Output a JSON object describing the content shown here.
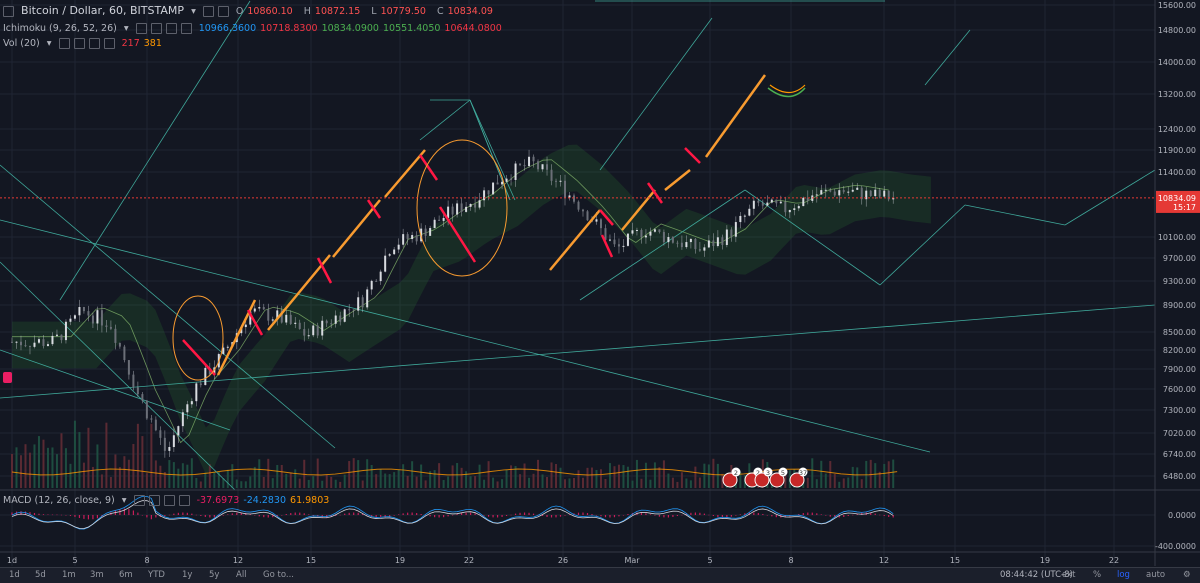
{
  "header": {
    "symbol": "Bitcoin / Dollar, 60, BITSTAMP",
    "ohlc": [
      {
        "label": "O",
        "value": "10860.10"
      },
      {
        "label": "H",
        "value": "10872.15"
      },
      {
        "label": "L",
        "value": "10779.50"
      },
      {
        "label": "C",
        "value": "10834.09"
      }
    ],
    "ichimoku": {
      "label": "Ichimoku (9, 26, 52, 26)",
      "values": [
        {
          "value": "10966.3600",
          "color": "#2196f3"
        },
        {
          "value": "10718.8300",
          "color": "#f23645"
        },
        {
          "value": "10834.0900",
          "color": "#4caf50"
        },
        {
          "value": "10551.4050",
          "color": "#4caf50"
        },
        {
          "value": "10644.0800",
          "color": "#f23645"
        }
      ]
    },
    "volume": {
      "label": "Vol (20)",
      "values": [
        {
          "value": "217",
          "color": "#f23645"
        },
        {
          "value": "381",
          "color": "#ff9800"
        }
      ]
    }
  },
  "macd_legend": {
    "label": "MACD (12, 26, close, 9)",
    "values": [
      {
        "value": "-37.6973",
        "color": "#e91e63"
      },
      {
        "value": "-24.2830",
        "color": "#2196f3"
      },
      {
        "value": "61.9803",
        "color": "#ff9800"
      }
    ]
  },
  "price_badge": {
    "value": "10834.09",
    "time": "15:17",
    "color": "#e53935"
  },
  "events": [
    "2",
    "2",
    "3",
    "5",
    "37"
  ],
  "toolbar": {
    "timeframes": [
      "1d",
      "5d",
      "1m",
      "3m",
      "6m",
      "YTD",
      "1y",
      "5y",
      "All"
    ],
    "goto": "Go to...",
    "clock": "08:44:42 (UTC-8)",
    "modes": [
      "ext",
      "%",
      "log",
      "auto"
    ],
    "active_mode": "log"
  },
  "chart_data": {
    "type": "line",
    "series": [
      {
        "x": [
          1.5,
          2.5,
          3.5,
          4.5,
          5.5,
          6.5,
          7.5,
          8.5,
          9.5,
          10.5,
          11.5,
          12.5,
          13.5,
          14.5,
          15.5,
          16.5,
          17.5,
          18.5,
          19.5,
          20.5,
          21.5,
          22.5,
          23.5,
          24.5,
          25.5,
          26.5,
          27.5,
          28.5,
          29.5,
          30.5,
          31.5
        ],
        "values": [
          8200,
          8700,
          8500,
          7400,
          6600,
          7500,
          8000,
          8700,
          8600,
          8300,
          8600,
          8900,
          9900,
          10100,
          10500,
          10800,
          11300,
          11600,
          11100,
          10500,
          9800,
          10200,
          10000,
          9800,
          10100,
          10700,
          10600,
          10900,
          11000,
          10900,
          10834
        ]
      }
    ],
    "x_ticks": [
      "1d",
      "5",
      "8",
      "12",
      "15",
      "19",
      "22",
      "26",
      "Mar",
      "5",
      "8",
      "12",
      "15",
      "19",
      "22"
    ],
    "y_ticks": [
      "15600.00",
      "14800.00",
      "14000.00",
      "13200.00",
      "12400.00",
      "11900.00",
      "11400.00",
      "10834.09",
      "10100.00",
      "9700.00",
      "9300.00",
      "8900.00",
      "8500.00",
      "8200.00",
      "7900.00",
      "7600.00",
      "7300.00",
      "7020.00",
      "6740.00",
      "6480.00"
    ],
    "macd_ticks": [
      "0.0000",
      "-400.0000"
    ],
    "ylim": [
      6300,
      15800
    ],
    "y_scale": "log",
    "grid": true
  }
}
